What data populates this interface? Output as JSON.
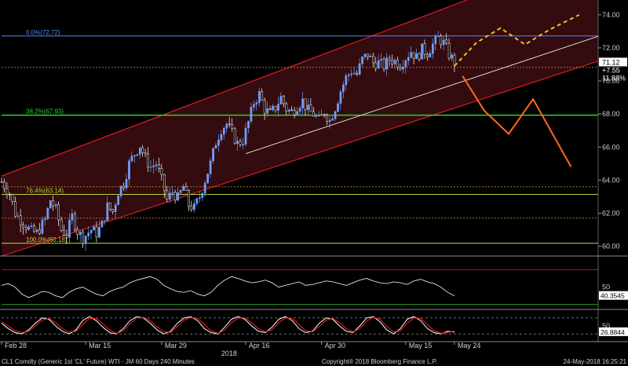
{
  "chart_data": [
    {
      "type": "candlestick",
      "panel": "price",
      "ylim": [
        59.6,
        74.8
      ],
      "y_ticks": [
        "74.00",
        "72.00",
        "70.00",
        "68.00",
        "66.00",
        "64.00",
        "62.00",
        "60.00"
      ],
      "y_tick_values": [
        74,
        72,
        70,
        68,
        66,
        64,
        62,
        60
      ],
      "x_tick_labels": [
        "Feb 28",
        "Mar 15",
        "Mar 29",
        "Apr 16",
        "Apr 30",
        "May 15",
        "May 24"
      ],
      "x_tick_index": [
        0,
        31,
        59,
        90,
        118,
        149,
        167
      ],
      "year_label": "2018",
      "last_price_label": "71.12",
      "change_label": "+7.55",
      "change_pct_label": "11.88%",
      "fib_levels": [
        {
          "label": "0.0%(72.72)",
          "value": 72.72,
          "color": "#4a8cff"
        },
        {
          "label": "38.2%(67.93)",
          "value": 67.93,
          "color": "#2fd22f"
        },
        {
          "label": "76.4%(63.14)",
          "value": 63.14,
          "color": "#b4d23c"
        },
        {
          "label": "100.0%(60.18)",
          "value": 60.18,
          "color": "#d8d23c"
        }
      ],
      "extra_levels": [
        {
          "value": 70.82,
          "color": "#c08a30"
        },
        {
          "value": 63.6,
          "color": "#c08a30"
        },
        {
          "value": 61.7,
          "color": "#c08a30"
        }
      ],
      "close_series": [
        {
          "i": 0,
          "v": 63.9
        },
        {
          "i": 3,
          "v": 63.2
        },
        {
          "i": 5,
          "v": 62.0
        },
        {
          "i": 8,
          "v": 61.4
        },
        {
          "i": 11,
          "v": 60.9
        },
        {
          "i": 13,
          "v": 60.8
        },
        {
          "i": 16,
          "v": 61.6
        },
        {
          "i": 18,
          "v": 62.8
        },
        {
          "i": 20,
          "v": 62.2
        },
        {
          "i": 22,
          "v": 61.0
        },
        {
          "i": 24,
          "v": 60.7
        },
        {
          "i": 26,
          "v": 61.8
        },
        {
          "i": 28,
          "v": 60.9
        },
        {
          "i": 30,
          "v": 60.5
        },
        {
          "i": 33,
          "v": 61.0
        },
        {
          "i": 35,
          "v": 60.8
        },
        {
          "i": 37,
          "v": 61.3
        },
        {
          "i": 39,
          "v": 62.4
        },
        {
          "i": 41,
          "v": 62.1
        },
        {
          "i": 43,
          "v": 63.3
        },
        {
          "i": 45,
          "v": 63.8
        },
        {
          "i": 47,
          "v": 65.0
        },
        {
          "i": 49,
          "v": 65.6
        },
        {
          "i": 51,
          "v": 66.1
        },
        {
          "i": 53,
          "v": 65.3
        },
        {
          "i": 55,
          "v": 64.8
        },
        {
          "i": 57,
          "v": 65.0
        },
        {
          "i": 59,
          "v": 64.0
        },
        {
          "i": 61,
          "v": 62.8
        },
        {
          "i": 63,
          "v": 63.3
        },
        {
          "i": 65,
          "v": 62.9
        },
        {
          "i": 67,
          "v": 63.6
        },
        {
          "i": 69,
          "v": 62.5
        },
        {
          "i": 71,
          "v": 62.3
        },
        {
          "i": 73,
          "v": 63.0
        },
        {
          "i": 75,
          "v": 64.0
        },
        {
          "i": 77,
          "v": 65.0
        },
        {
          "i": 79,
          "v": 66.3
        },
        {
          "i": 81,
          "v": 67.1
        },
        {
          "i": 83,
          "v": 67.4
        },
        {
          "i": 85,
          "v": 66.8
        },
        {
          "i": 87,
          "v": 66.2
        },
        {
          "i": 89,
          "v": 66.4
        },
        {
          "i": 91,
          "v": 67.5
        },
        {
          "i": 93,
          "v": 68.7
        },
        {
          "i": 95,
          "v": 69.2
        },
        {
          "i": 97,
          "v": 68.3
        },
        {
          "i": 99,
          "v": 68.0
        },
        {
          "i": 101,
          "v": 68.4
        },
        {
          "i": 103,
          "v": 69.0
        },
        {
          "i": 105,
          "v": 68.3
        },
        {
          "i": 107,
          "v": 68.1
        },
        {
          "i": 109,
          "v": 68.5
        },
        {
          "i": 111,
          "v": 68.8
        },
        {
          "i": 113,
          "v": 68.2
        },
        {
          "i": 115,
          "v": 68.0
        },
        {
          "i": 117,
          "v": 67.6
        },
        {
          "i": 119,
          "v": 68.1
        },
        {
          "i": 121,
          "v": 67.6
        },
        {
          "i": 123,
          "v": 68.4
        },
        {
          "i": 125,
          "v": 69.4
        },
        {
          "i": 127,
          "v": 70.2
        },
        {
          "i": 129,
          "v": 70.6
        },
        {
          "i": 131,
          "v": 70.4
        },
        {
          "i": 133,
          "v": 71.3
        },
        {
          "i": 135,
          "v": 71.6
        },
        {
          "i": 137,
          "v": 71.1
        },
        {
          "i": 139,
          "v": 71.1
        },
        {
          "i": 141,
          "v": 70.9
        },
        {
          "i": 143,
          "v": 71.3
        },
        {
          "i": 145,
          "v": 71.2
        },
        {
          "i": 147,
          "v": 71.0
        },
        {
          "i": 149,
          "v": 71.4
        },
        {
          "i": 151,
          "v": 71.8
        },
        {
          "i": 153,
          "v": 71.4
        },
        {
          "i": 155,
          "v": 71.9
        },
        {
          "i": 157,
          "v": 71.7
        },
        {
          "i": 159,
          "v": 72.2
        },
        {
          "i": 161,
          "v": 72.6
        },
        {
          "i": 163,
          "v": 72.3
        },
        {
          "i": 165,
          "v": 71.6
        },
        {
          "i": 167,
          "v": 71.12
        }
      ],
      "channel": {
        "upper": [
          {
            "i": 0,
            "v": 64.25
          },
          {
            "i": 220,
            "v": 77.9
          }
        ],
        "lower": [
          {
            "i": 0,
            "v": 59.4
          },
          {
            "i": 220,
            "v": 71.2
          }
        ],
        "mid_white": [
          {
            "i": 90,
            "v": 65.6
          },
          {
            "i": 220,
            "v": 72.7
          }
        ],
        "color": "#ff2020",
        "fill": "#3a0c10"
      },
      "projection_dashed": [
        {
          "i": 167,
          "v": 70.9
        },
        {
          "i": 175,
          "v": 72.3
        },
        {
          "i": 184,
          "v": 73.2
        },
        {
          "i": 193,
          "v": 72.2
        },
        {
          "i": 202,
          "v": 73.1
        },
        {
          "i": 213,
          "v": 74.0
        }
      ],
      "projection_solid": [
        {
          "i": 170,
          "v": 70.3
        },
        {
          "i": 178,
          "v": 68.2
        },
        {
          "i": 187,
          "v": 66.8
        },
        {
          "i": 196,
          "v": 68.9
        },
        {
          "i": 210,
          "v": 64.8
        }
      ]
    },
    {
      "type": "line",
      "panel": "rsi",
      "ylim": [
        28,
        82
      ],
      "y_ticks": [
        "50"
      ],
      "y_tick_values": [
        50
      ],
      "last_value_label": "40.3545",
      "ref_levels": [
        {
          "value": 70,
          "color": "#c02020"
        },
        {
          "value": 30,
          "color": "#2fd22f"
        }
      ],
      "values": [
        52,
        54,
        50,
        42,
        38,
        41,
        45,
        44,
        40,
        38,
        44,
        48,
        50,
        46,
        42,
        40,
        45,
        48,
        50,
        55,
        58,
        60,
        62,
        59,
        52,
        48,
        45,
        44,
        46,
        42,
        40,
        44,
        52,
        58,
        62,
        60,
        57,
        55,
        56,
        58,
        55,
        50,
        52,
        54,
        56,
        52,
        53,
        55,
        57,
        56,
        54,
        52,
        55,
        58,
        60,
        57,
        55,
        54,
        56,
        55,
        53,
        57,
        59,
        56,
        54,
        50,
        44,
        40
      ]
    },
    {
      "type": "line",
      "panel": "stochastic",
      "ylim": [
        0,
        100
      ],
      "y_ticks": [
        "50"
      ],
      "y_tick_values": [
        50
      ],
      "last_value_label": "26.8844",
      "ref_levels": [
        {
          "value": 80,
          "color": "#aaaaaa"
        },
        {
          "value": 20,
          "color": "#aaaaaa"
        }
      ],
      "series": [
        {
          "color": "#ffffff",
          "values": [
            60,
            40,
            25,
            20,
            35,
            60,
            80,
            75,
            50,
            30,
            20,
            35,
            70,
            85,
            70,
            45,
            25,
            20,
            40,
            70,
            85,
            80,
            60,
            35,
            20,
            30,
            60,
            80,
            85,
            70,
            40,
            25,
            20,
            45,
            75,
            85,
            75,
            50,
            30,
            25,
            45,
            75,
            85,
            70,
            40,
            25,
            30,
            60,
            80,
            75,
            50,
            30,
            25,
            50,
            80,
            85,
            65,
            35,
            20,
            40,
            75,
            85,
            70,
            40,
            25,
            20,
            30,
            26.9
          ]
        },
        {
          "color": "#ff2020",
          "values": [
            65,
            50,
            32,
            25,
            30,
            50,
            72,
            78,
            62,
            40,
            26,
            30,
            55,
            78,
            78,
            58,
            35,
            22,
            32,
            58,
            80,
            82,
            70,
            45,
            28,
            26,
            48,
            72,
            82,
            78,
            55,
            32,
            22,
            35,
            62,
            80,
            80,
            62,
            40,
            28,
            36,
            62,
            80,
            78,
            55,
            32,
            28,
            48,
            72,
            78,
            62,
            40,
            28,
            40,
            68,
            82,
            75,
            48,
            28,
            32,
            60,
            80,
            78,
            55,
            32,
            22,
            26,
            30
          ]
        }
      ]
    }
  ],
  "header_line": "CL1 Comdty (Generic 1st 'CL' Future) WTI - JM 60 Days 240 Minutes",
  "copyright": "Copyright® 2018 Bloomberg Finance L.P.",
  "timestamp": "24-May-2018 16:25:21",
  "colors": {
    "background": "#000000",
    "axis_text": "#cfcfcf",
    "up_candle": "#6ea0ff",
    "down_candle": "#ffffff",
    "projection_dashed": "#f0c020",
    "projection_solid": "#ff6a1a",
    "price_box": "#ffffff"
  }
}
